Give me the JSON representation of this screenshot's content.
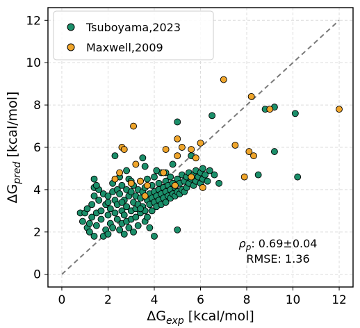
{
  "chart_data": {
    "type": "scatter",
    "xlabel": "ΔG_exp [kcal/mol]",
    "ylabel": "ΔG_pred [kcal/mol]",
    "xlim": [
      -0.6,
      12.6
    ],
    "ylim": [
      -0.6,
      12.6
    ],
    "xticks": [
      0,
      2,
      4,
      6,
      8,
      10,
      12
    ],
    "yticks": [
      0,
      2,
      4,
      6,
      8,
      10,
      12
    ],
    "grid": true,
    "diagonal_reference_line": true,
    "legend_position": "top-left",
    "annotations": [
      "ρp: 0.69±0.04",
      "RMSE: 1.36"
    ],
    "series": [
      {
        "name": "Tsuboyama,2023",
        "color": "#1b8f6a",
        "points": [
          [
            0.8,
            2.9
          ],
          [
            0.9,
            2.5
          ],
          [
            1.0,
            2.9
          ],
          [
            1.1,
            2.2
          ],
          [
            1.1,
            3.1
          ],
          [
            1.2,
            2.4
          ],
          [
            1.2,
            2.0
          ],
          [
            1.3,
            2.7
          ],
          [
            1.3,
            3.3
          ],
          [
            1.4,
            1.8
          ],
          [
            1.4,
            3.7
          ],
          [
            1.4,
            4.1
          ],
          [
            1.4,
            4.5
          ],
          [
            1.5,
            2.9
          ],
          [
            1.5,
            2.3
          ],
          [
            1.6,
            3.5
          ],
          [
            1.6,
            4.0
          ],
          [
            1.7,
            3.0
          ],
          [
            1.7,
            2.6
          ],
          [
            1.8,
            1.8
          ],
          [
            1.8,
            3.8
          ],
          [
            1.9,
            2.1
          ],
          [
            1.9,
            3.3
          ],
          [
            2.0,
            2.8
          ],
          [
            2.0,
            3.7
          ],
          [
            2.0,
            1.9
          ],
          [
            2.1,
            2.4
          ],
          [
            2.1,
            3.1
          ],
          [
            2.2,
            3.9
          ],
          [
            2.2,
            2.2
          ],
          [
            2.2,
            4.3
          ],
          [
            2.3,
            2.9
          ],
          [
            2.3,
            3.5
          ],
          [
            2.3,
            5.6
          ],
          [
            2.4,
            2.6
          ],
          [
            2.4,
            3.3
          ],
          [
            2.4,
            4.0
          ],
          [
            2.5,
            2.1
          ],
          [
            2.5,
            3.8
          ],
          [
            2.5,
            4.6
          ],
          [
            2.6,
            3.0
          ],
          [
            2.6,
            2.4
          ],
          [
            2.6,
            4.2
          ],
          [
            2.7,
            3.5
          ],
          [
            2.7,
            2.8
          ],
          [
            2.7,
            1.9
          ],
          [
            2.8,
            3.2
          ],
          [
            2.8,
            4.0
          ],
          [
            2.8,
            2.5
          ],
          [
            2.9,
            3.7
          ],
          [
            2.9,
            2.2
          ],
          [
            2.9,
            4.5
          ],
          [
            3.0,
            3.0
          ],
          [
            3.0,
            3.9
          ],
          [
            3.0,
            2.6
          ],
          [
            3.1,
            3.4
          ],
          [
            3.1,
            4.2
          ],
          [
            3.1,
            2.0
          ],
          [
            3.2,
            3.1
          ],
          [
            3.2,
            3.7
          ],
          [
            3.2,
            2.7
          ],
          [
            3.3,
            4.0
          ],
          [
            3.3,
            3.3
          ],
          [
            3.3,
            2.3
          ],
          [
            3.4,
            3.6
          ],
          [
            3.4,
            4.4
          ],
          [
            3.4,
            2.9
          ],
          [
            3.5,
            3.2
          ],
          [
            3.5,
            3.9
          ],
          [
            3.5,
            5.5
          ],
          [
            3.6,
            3.0
          ],
          [
            3.6,
            2.5
          ],
          [
            3.6,
            4.1
          ],
          [
            3.7,
            3.5
          ],
          [
            3.7,
            4.5
          ],
          [
            3.7,
            2.7
          ],
          [
            3.8,
            3.3
          ],
          [
            3.8,
            3.8
          ],
          [
            3.8,
            2.2
          ],
          [
            3.9,
            4.2
          ],
          [
            3.9,
            3.0
          ],
          [
            3.9,
            3.6
          ],
          [
            4.0,
            3.9
          ],
          [
            4.0,
            3.4
          ],
          [
            4.0,
            4.6
          ],
          [
            4.0,
            1.8
          ],
          [
            4.1,
            3.2
          ],
          [
            4.1,
            3.7
          ],
          [
            4.2,
            4.0
          ],
          [
            4.2,
            3.5
          ],
          [
            4.2,
            4.3
          ],
          [
            4.3,
            3.8
          ],
          [
            4.3,
            3.3
          ],
          [
            4.3,
            4.8
          ],
          [
            4.4,
            3.6
          ],
          [
            4.4,
            4.1
          ],
          [
            4.5,
            3.9
          ],
          [
            4.5,
            4.4
          ],
          [
            4.5,
            3.4
          ],
          [
            4.6,
            4.2
          ],
          [
            4.6,
            3.7
          ],
          [
            4.7,
            4.0
          ],
          [
            4.7,
            4.6
          ],
          [
            4.7,
            3.6
          ],
          [
            4.8,
            3.8
          ],
          [
            4.8,
            4.3
          ],
          [
            4.8,
            5.2
          ],
          [
            4.9,
            4.1
          ],
          [
            4.9,
            3.7
          ],
          [
            5.0,
            4.5
          ],
          [
            5.0,
            3.9
          ],
          [
            5.0,
            2.1
          ],
          [
            5.0,
            7.2
          ],
          [
            5.1,
            4.3
          ],
          [
            5.1,
            3.8
          ],
          [
            5.2,
            4.7
          ],
          [
            5.2,
            4.0
          ],
          [
            5.3,
            4.4
          ],
          [
            5.3,
            3.9
          ],
          [
            5.4,
            4.6
          ],
          [
            5.4,
            4.1
          ],
          [
            5.5,
            4.8
          ],
          [
            5.5,
            4.3
          ],
          [
            5.6,
            4.5
          ],
          [
            5.6,
            5.6
          ],
          [
            5.7,
            4.7
          ],
          [
            5.7,
            4.2
          ],
          [
            5.8,
            4.9
          ],
          [
            5.8,
            4.4
          ],
          [
            5.9,
            4.6
          ],
          [
            6.0,
            4.8
          ],
          [
            6.0,
            4.3
          ],
          [
            6.1,
            4.5
          ],
          [
            6.1,
            5.0
          ],
          [
            6.2,
            4.7
          ],
          [
            6.3,
            4.4
          ],
          [
            6.4,
            4.9
          ],
          [
            6.5,
            7.5
          ],
          [
            6.6,
            4.7
          ],
          [
            6.8,
            4.3
          ],
          [
            8.5,
            4.7
          ],
          [
            8.8,
            7.8
          ],
          [
            9.2,
            5.8
          ],
          [
            9.2,
            7.9
          ],
          [
            10.1,
            7.6
          ],
          [
            10.2,
            4.6
          ],
          [
            2.0,
            3.4
          ],
          [
            2.6,
            3.4
          ],
          [
            3.4,
            3.1
          ],
          [
            4.5,
            4.8
          ],
          [
            1.5,
            4.2
          ],
          [
            3.0,
            4.4
          ],
          [
            3.6,
            5.1
          ],
          [
            2.8,
            4.9
          ],
          [
            4.1,
            4.9
          ]
        ]
      },
      {
        "name": "Maxwell,2009",
        "color": "#efa52b",
        "points": [
          [
            2.3,
            4.5
          ],
          [
            2.5,
            4.8
          ],
          [
            2.6,
            6.0
          ],
          [
            2.7,
            5.9
          ],
          [
            3.0,
            4.3
          ],
          [
            3.1,
            7.0
          ],
          [
            3.2,
            5.2
          ],
          [
            3.4,
            4.4
          ],
          [
            3.6,
            3.7
          ],
          [
            3.7,
            4.2
          ],
          [
            4.4,
            4.8
          ],
          [
            4.5,
            5.9
          ],
          [
            5.0,
            6.4
          ],
          [
            5.0,
            5.6
          ],
          [
            5.2,
            6.0
          ],
          [
            5.6,
            4.6
          ],
          [
            5.8,
            5.5
          ],
          [
            6.0,
            6.2
          ],
          [
            6.1,
            4.1
          ],
          [
            7.0,
            9.2
          ],
          [
            7.5,
            6.1
          ],
          [
            7.9,
            4.6
          ],
          [
            8.1,
            5.8
          ],
          [
            8.2,
            8.4
          ],
          [
            8.3,
            5.6
          ],
          [
            9.0,
            7.8
          ],
          [
            12.0,
            7.8
          ],
          [
            4.9,
            4.2
          ],
          [
            5.6,
            5.9
          ]
        ]
      }
    ]
  }
}
